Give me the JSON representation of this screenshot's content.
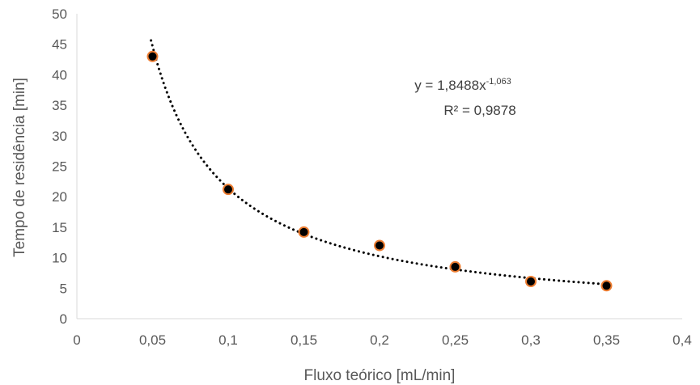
{
  "chart_data": {
    "type": "scatter",
    "xlabel": "Fluxo teórico [mL/min]",
    "ylabel": "Tempo de residência [min]",
    "xlim": [
      0,
      0.4
    ],
    "ylim": [
      0,
      50
    ],
    "x_ticks": [
      "0",
      "0,05",
      "0,1",
      "0,15",
      "0,2",
      "0,25",
      "0,3",
      "0,35",
      "0,4"
    ],
    "y_ticks": [
      "0",
      "5",
      "10",
      "15",
      "20",
      "25",
      "30",
      "35",
      "40",
      "45",
      "50"
    ],
    "series": [
      {
        "x": [
          0.05,
          0.1,
          0.15,
          0.2,
          0.25,
          0.3,
          0.35
        ],
        "y": [
          43.0,
          21.2,
          14.2,
          12.0,
          8.5,
          6.1,
          5.4
        ],
        "marker_fill": "#000000",
        "marker_edge": "#ED7D31"
      }
    ],
    "trendline": {
      "type": "power",
      "coefficient": 1.8488,
      "exponent": -1.063,
      "x_range": [
        0.049,
        0.35
      ],
      "color": "#000000",
      "style": "dotted",
      "equation_base": "y = 1,8488x",
      "equation_exponent": "-1,063",
      "r_squared_label": "R² = 0,9878"
    },
    "grid": false
  }
}
